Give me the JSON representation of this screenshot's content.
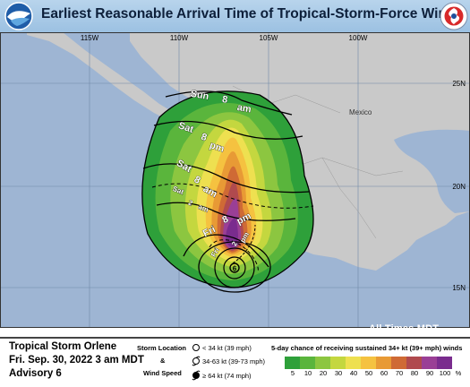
{
  "header": {
    "title": "Earliest Reasonable Arrival Time of Tropical-Storm-Force Winds"
  },
  "map": {
    "longitude_labels": [
      "115W",
      "110W",
      "105W",
      "100W"
    ],
    "latitude_labels": [
      "25N",
      "20N",
      "15N"
    ],
    "place_labels": {
      "country": "Mexico"
    },
    "timezone_note": "All Times MDT",
    "arrival_times": [
      {
        "day": "Sun",
        "hour": "8",
        "ampm": "am"
      },
      {
        "day": "Sat",
        "hour": "8",
        "ampm": "pm"
      },
      {
        "day": "Sat",
        "hour": "8",
        "ampm": "am"
      },
      {
        "day": "Sat",
        "hour": "2",
        "ampm": "am"
      },
      {
        "day": "Fri",
        "hour": "8",
        "ampm": "pm"
      },
      {
        "day": "Fri",
        "hour": "2",
        "ampm": "pm"
      }
    ],
    "storm_marker_label": "6",
    "colors": {
      "ocean": "#9eb5d3",
      "land": "#c9c9c9",
      "p5": "#2ea03a",
      "p10": "#5ab53c",
      "p20": "#8cc640",
      "p30": "#c4d73f",
      "p40": "#eee050",
      "p50": "#f5c240",
      "p60": "#e89a35",
      "p70": "#cf6a35",
      "p80": "#b04a4e",
      "p90": "#9a3f96",
      "p100": "#7a2c8e"
    }
  },
  "footer": {
    "storm_name": "Tropical Storm Orlene",
    "issue_time": "Fri. Sep. 30, 2022  3 am MDT",
    "advisory": "Advisory 6",
    "storm_location_label": "Storm Location",
    "ampersand": "&",
    "wind_speed_label": "Wind Speed",
    "legend_items": [
      "< 34 kt (39 mph)",
      "34-63 kt (39-73 mph)",
      "≥ 64 kt (74 mph)"
    ],
    "chance_title": "5-day chance of receiving sustained 34+ kt (39+ mph) winds",
    "scale": [
      {
        "label": "5",
        "color": "#2ea03a"
      },
      {
        "label": "10",
        "color": "#5ab53c"
      },
      {
        "label": "20",
        "color": "#8cc640"
      },
      {
        "label": "30",
        "color": "#c4d73f"
      },
      {
        "label": "40",
        "color": "#eee050"
      },
      {
        "label": "50",
        "color": "#f5c240"
      },
      {
        "label": "60",
        "color": "#e89a35"
      },
      {
        "label": "70",
        "color": "#cf6a35"
      },
      {
        "label": "80",
        "color": "#b04a4e"
      },
      {
        "label": "90",
        "color": "#9a3f96"
      },
      {
        "label": "100",
        "color": "#7a2c8e"
      },
      {
        "label": "%",
        "color": ""
      }
    ]
  }
}
